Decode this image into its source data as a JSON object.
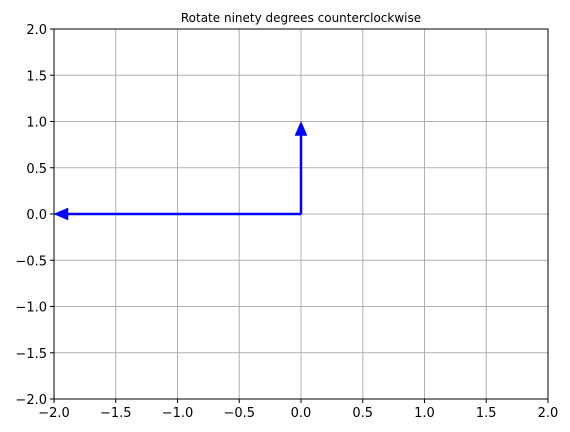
{
  "chart_data": {
    "type": "vector",
    "title": "Rotate ninety degrees counterclockwise",
    "xlabel": "",
    "ylabel": "",
    "xlim": [
      -2,
      2
    ],
    "ylim": [
      -2,
      2
    ],
    "x_ticks": [
      -2.0,
      -1.5,
      -1.0,
      -0.5,
      0.0,
      0.5,
      1.0,
      1.5,
      2.0
    ],
    "y_ticks": [
      -2.0,
      -1.5,
      -1.0,
      -0.5,
      0.0,
      0.5,
      1.0,
      1.5,
      2.0
    ],
    "x_tick_labels": [
      "−2.0",
      "−1.5",
      "−1.0",
      "−0.5",
      "0.0",
      "0.5",
      "1.0",
      "1.5",
      "2.0"
    ],
    "y_tick_labels": [
      "−2.0",
      "−1.5",
      "−1.0",
      "−0.5",
      "0.0",
      "0.5",
      "1.0",
      "1.5",
      "2.0"
    ],
    "grid": true,
    "vectors": [
      {
        "origin": [
          0,
          0
        ],
        "components": [
          0,
          1
        ],
        "color": "#0000ff"
      },
      {
        "origin": [
          0,
          0
        ],
        "components": [
          -2,
          0
        ],
        "color": "#0000ff"
      }
    ]
  }
}
